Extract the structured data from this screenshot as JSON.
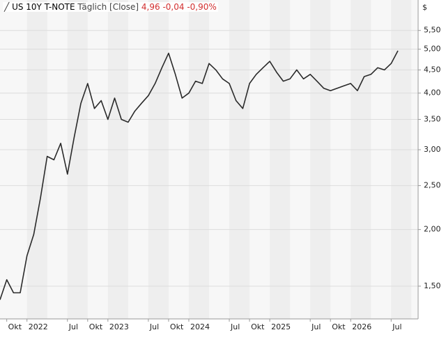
{
  "chart_data": {
    "type": "line",
    "title": "US 10Y T-NOTE",
    "subtitle": "Täglich [Close]",
    "last_value": "4,96",
    "change": "-0,04",
    "change_pct": "-0,90%",
    "change_color": "#d32f2f",
    "y_label": "$",
    "log_scale": true,
    "grid": true,
    "xlim": [
      "2021-09",
      "2026-11"
    ],
    "xticks": [
      {
        "value": "2021-10",
        "label": "Okt"
      },
      {
        "value": "2022-01",
        "label": "2022"
      },
      {
        "value": "2022-07",
        "label": "Jul"
      },
      {
        "value": "2022-10",
        "label": "Okt"
      },
      {
        "value": "2023-01",
        "label": "2023"
      },
      {
        "value": "2023-07",
        "label": "Jul"
      },
      {
        "value": "2023-10",
        "label": "Okt"
      },
      {
        "value": "2024-01",
        "label": "2024"
      },
      {
        "value": "2024-07",
        "label": "Jul"
      },
      {
        "value": "2024-10",
        "label": "Okt"
      },
      {
        "value": "2025-01",
        "label": "2025"
      },
      {
        "value": "2025-07",
        "label": "Jul"
      },
      {
        "value": "2025-10",
        "label": "Okt"
      },
      {
        "value": "2026-01",
        "label": "2026"
      },
      {
        "value": "2026-07",
        "label": "Jul"
      }
    ],
    "ylim": [
      1.27,
      6.42
    ],
    "yticks": [
      {
        "value": 1.5,
        "label": "1,50"
      },
      {
        "value": 2,
        "label": "2,00"
      },
      {
        "value": 2.5,
        "label": "2,50"
      },
      {
        "value": 3,
        "label": "3,00"
      },
      {
        "value": 3.5,
        "label": "3,50"
      },
      {
        "value": 4,
        "label": "4,00"
      },
      {
        "value": 4.5,
        "label": "4,50"
      },
      {
        "value": 5,
        "label": "5,00"
      },
      {
        "value": 5.5,
        "label": "5,50"
      }
    ],
    "x": [
      "2021-09",
      "2021-10",
      "2021-11",
      "2021-12",
      "2022-01",
      "2022-02",
      "2022-03",
      "2022-04",
      "2022-05",
      "2022-06",
      "2022-07",
      "2022-08",
      "2022-09",
      "2022-10",
      "2022-11",
      "2022-12",
      "2023-01",
      "2023-02",
      "2023-03",
      "2023-04",
      "2023-05",
      "2023-06",
      "2023-07",
      "2023-08",
      "2023-09",
      "2023-10",
      "2023-11",
      "2023-12",
      "2024-01",
      "2024-02",
      "2024-03",
      "2024-04",
      "2024-05",
      "2024-06",
      "2024-07",
      "2024-08",
      "2024-09",
      "2024-10",
      "2024-11",
      "2024-12",
      "2025-01",
      "2025-02",
      "2025-03",
      "2025-04",
      "2025-05",
      "2025-06",
      "2025-07",
      "2025-08",
      "2025-09",
      "2025-10",
      "2025-11",
      "2025-12",
      "2026-01",
      "2026-02",
      "2026-03",
      "2026-04",
      "2026-05",
      "2026-06",
      "2026-07",
      "2026-08"
    ],
    "series": [
      {
        "color": "#2a2a2a",
        "values": [
          1.4,
          1.55,
          1.45,
          1.45,
          1.75,
          1.95,
          2.35,
          2.9,
          2.85,
          3.1,
          2.65,
          3.2,
          3.8,
          4.2,
          3.7,
          3.85,
          3.5,
          3.9,
          3.5,
          3.45,
          3.65,
          3.8,
          3.95,
          4.2,
          4.55,
          4.9,
          4.4,
          3.9,
          4.0,
          4.25,
          4.2,
          4.65,
          4.5,
          4.3,
          4.2,
          3.85,
          3.7,
          4.2,
          4.4,
          4.55,
          4.7,
          4.45,
          4.25,
          4.3,
          4.5,
          4.3,
          4.4,
          4.25,
          4.1,
          4.05,
          4.1,
          4.15,
          4.2,
          4.05,
          4.35,
          4.4,
          4.55,
          4.5,
          4.65,
          4.96
        ]
      }
    ]
  }
}
